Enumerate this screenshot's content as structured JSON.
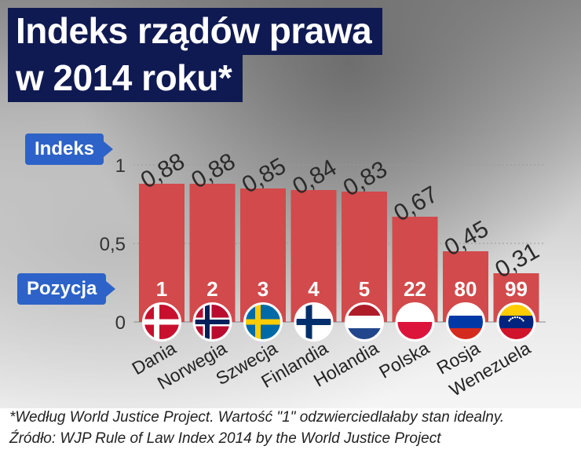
{
  "title_line1": "Indeks rządów prawa",
  "title_line2": "w 2014 roku*",
  "index_label": "Indeks",
  "position_label": "Pozycja",
  "footnote_line1": "*Według World Justice Project. Wartość \"1\" odzwierciedlałaby stan idealny.",
  "footnote_line2": "Źródło: WJP Rule of Law Index 2014 by the World Justice Project",
  "colors": {
    "bar": "#d24a4b",
    "title_bg": "#101a52",
    "tag": "#2d63c8"
  },
  "chart_data": {
    "type": "bar",
    "categories": [
      "Dania",
      "Norwegia",
      "Szwecja",
      "Finlandia",
      "Holandia",
      "Polska",
      "Rosja",
      "Wenezuela"
    ],
    "values": [
      0.88,
      0.88,
      0.85,
      0.84,
      0.83,
      0.67,
      0.45,
      0.31
    ],
    "value_labels": [
      "0,88",
      "0,88",
      "0,85",
      "0,84",
      "0,83",
      "0,67",
      "0,45",
      "0,31"
    ],
    "positions": [
      "1",
      "2",
      "3",
      "4",
      "5",
      "22",
      "80",
      "99"
    ],
    "flags": [
      "denmark-flag",
      "norway-flag",
      "sweden-flag",
      "finland-flag",
      "netherlands-flag",
      "poland-flag",
      "russia-flag",
      "venezuela-flag"
    ],
    "yticks": [
      "0",
      "0,5",
      "1"
    ],
    "ytick_values": [
      0,
      0.5,
      1
    ],
    "ylim": [
      0,
      1
    ]
  }
}
